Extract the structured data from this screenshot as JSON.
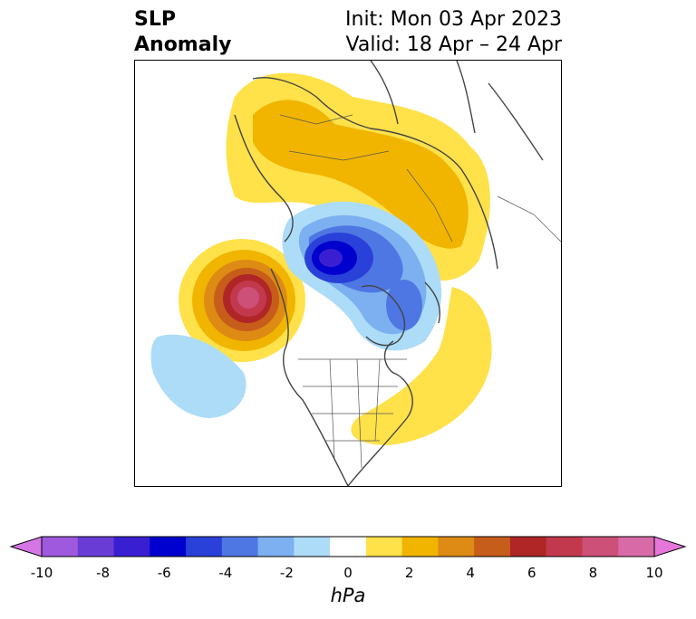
{
  "title": {
    "left_line1": "SLP",
    "left_line2": "Anomaly",
    "right_line1": "Init: Mon 03 Apr 2023",
    "right_line2": "Valid: 18 Apr – 24 Apr"
  },
  "colorbar": {
    "unit": "hPa",
    "ticks": [
      "-10",
      "-8",
      "-6",
      "-4",
      "-2",
      "0",
      "2",
      "4",
      "6",
      "8",
      "10"
    ],
    "colors": [
      "#d675e6",
      "#9e59de",
      "#6a3cd6",
      "#3a1fd2",
      "#0000cf",
      "#2a41d9",
      "#4f77e3",
      "#7db0f0",
      "#acdcf8",
      "#ffffff",
      "#ffe14a",
      "#f1b500",
      "#dd8b14",
      "#c75d1a",
      "#b02626",
      "#c2394e",
      "#cd5079",
      "#d86aa8",
      "#e576da"
    ],
    "extend": "both"
  },
  "map": {
    "projection": "polar",
    "region": "Northern Hemisphere / North America"
  }
}
